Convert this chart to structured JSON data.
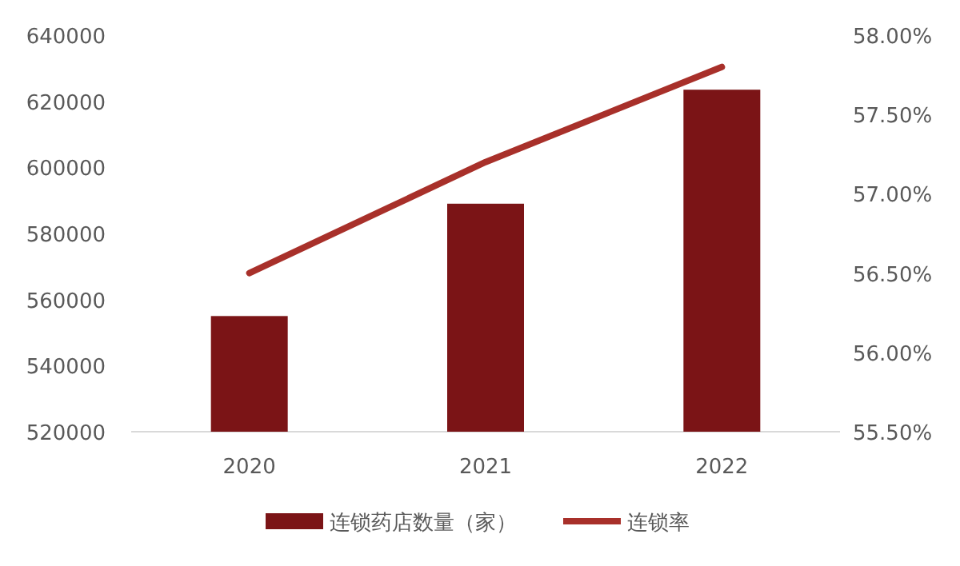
{
  "chart_data": {
    "type": "bar",
    "categories": [
      "2020",
      "2021",
      "2022"
    ],
    "series": [
      {
        "name": "连锁药店数量（家）",
        "color": "#7b1416",
        "values": [
          555000,
          589000,
          623500
        ]
      },
      {
        "name": "连锁率",
        "type": "line",
        "axis": "y2",
        "color": "#a8302a",
        "values": [
          56.5,
          57.2,
          57.8
        ]
      }
    ],
    "ylim": [
      520000,
      640000
    ],
    "yticks": [
      520000,
      540000,
      560000,
      580000,
      600000,
      620000,
      640000
    ],
    "y2lim": [
      55.5,
      58.0
    ],
    "y2ticks": [
      {
        "value": 55.5,
        "label": "55.50%"
      },
      {
        "value": 56.0,
        "label": "56.00%"
      },
      {
        "value": 56.5,
        "label": "56.50%"
      },
      {
        "value": 57.0,
        "label": "57.00%"
      },
      {
        "value": 57.5,
        "label": "57.50%"
      },
      {
        "value": 58.0,
        "label": "58.00%"
      }
    ],
    "legend": "bottom"
  }
}
